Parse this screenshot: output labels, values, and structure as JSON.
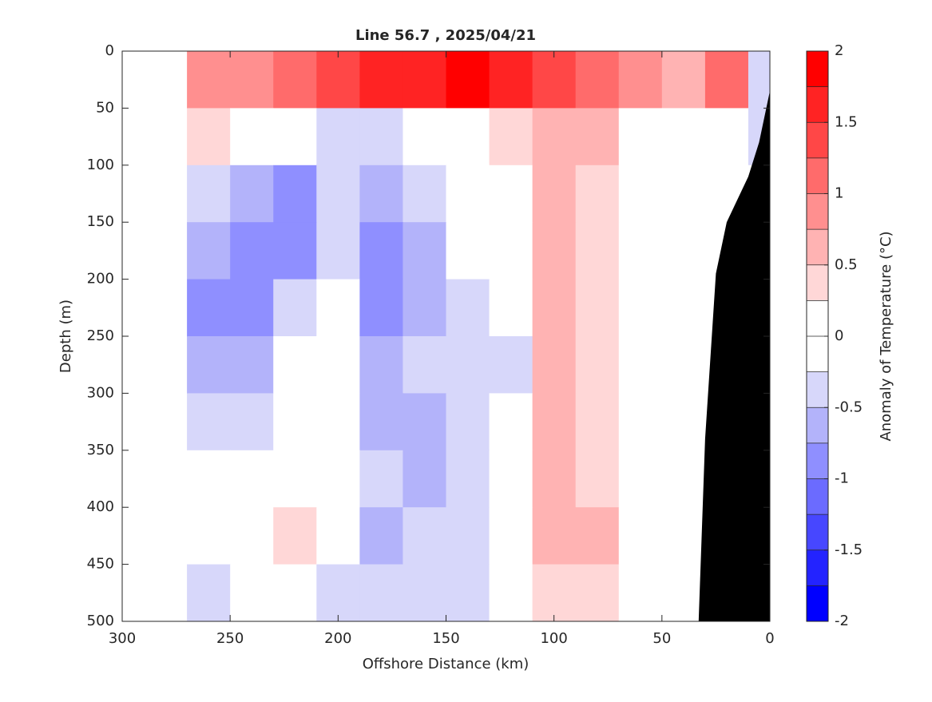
{
  "chart_data": {
    "type": "contour",
    "title": "Line 56.7 , 2025/04/21",
    "xlabel": "Offshore Distance (km)",
    "ylabel": "Depth (m)",
    "colorbar_label": "Anomaly of Temperature (°C)",
    "xlim": [
      300,
      0
    ],
    "xticks": [
      300,
      250,
      200,
      150,
      100,
      50,
      0
    ],
    "ylim": [
      0,
      500
    ],
    "yticks": [
      0,
      50,
      100,
      150,
      200,
      250,
      300,
      350,
      400,
      450,
      500
    ],
    "x": [
      260,
      240,
      220,
      200,
      180,
      160,
      140,
      120,
      100,
      80,
      60,
      40,
      20,
      0
    ],
    "depth": [
      25,
      75,
      125,
      175,
      225,
      275,
      325,
      375,
      425,
      475
    ],
    "values": [
      [
        0.8,
        0.9,
        1.1,
        1.4,
        1.6,
        1.7,
        1.8,
        1.6,
        1.3,
        1.1,
        0.9,
        0.6,
        1.2,
        -0.5
      ],
      [
        0.3,
        -0.1,
        -0.2,
        -0.3,
        -0.3,
        0.1,
        0.2,
        0.3,
        0.7,
        0.5,
        0.2,
        0.1,
        -0.1,
        -0.5
      ],
      [
        -0.3,
        -0.7,
        -1.0,
        -0.5,
        -0.6,
        -0.4,
        -0.1,
        0.1,
        0.6,
        0.4,
        0.1,
        0,
        0,
        0
      ],
      [
        -0.6,
        -1.0,
        -0.8,
        -0.3,
        -0.8,
        -0.6,
        -0.2,
        -0.1,
        0.6,
        0.4,
        0.1,
        0,
        0,
        0
      ],
      [
        -0.9,
        -0.8,
        -0.4,
        -0.2,
        -0.9,
        -0.6,
        -0.3,
        -0.2,
        0.6,
        0.4,
        0.1,
        0,
        0,
        0
      ],
      [
        -0.7,
        -0.6,
        -0.1,
        -0.2,
        -0.7,
        -0.5,
        -0.3,
        -0.3,
        0.6,
        0.4,
        0.1,
        0,
        0,
        0
      ],
      [
        -0.4,
        -0.4,
        0.1,
        -0.2,
        -0.6,
        -0.6,
        -0.3,
        -0.2,
        0.6,
        0.4,
        0.1,
        0,
        0,
        0
      ],
      [
        -0.1,
        -0.2,
        0.1,
        -0.2,
        -0.5,
        -0.6,
        -0.3,
        -0.2,
        0.6,
        0.4,
        0.1,
        0,
        0,
        0
      ],
      [
        0,
        0.1,
        0.3,
        -0.2,
        -0.6,
        -0.5,
        -0.3,
        -0.2,
        0.6,
        0.5,
        0.1,
        0,
        0,
        0
      ],
      [
        -0.3,
        0,
        0.1,
        -0.3,
        -0.4,
        -0.3,
        -0.3,
        -0.2,
        0.3,
        0.3,
        0.1,
        0,
        0,
        0
      ]
    ],
    "levels": [
      -2,
      -1.75,
      -1.5,
      -1.25,
      -1,
      -0.75,
      -0.5,
      -0.25,
      0,
      0.25,
      0.5,
      0.75,
      1,
      1.25,
      1.5,
      1.75,
      2
    ],
    "colors": [
      "#0000ff",
      "#2323ff",
      "#4747ff",
      "#6b6bff",
      "#8f8fff",
      "#b3b3fa",
      "#d7d7fa",
      "#ffffff",
      "#ffffff",
      "#ffd7d7",
      "#ffb3b3",
      "#ff8f8f",
      "#ff6b6b",
      "#ff4747",
      "#ff2323",
      "#ff0000"
    ],
    "cticks": [
      -2,
      -1.5,
      -1,
      -0.5,
      0,
      0.5,
      1,
      1.5,
      2
    ],
    "bottom": {
      "color": "#000000",
      "x": [
        0,
        5,
        10,
        20,
        25,
        30,
        33
      ],
      "depth": [
        35,
        80,
        110,
        150,
        195,
        340,
        500
      ]
    }
  }
}
